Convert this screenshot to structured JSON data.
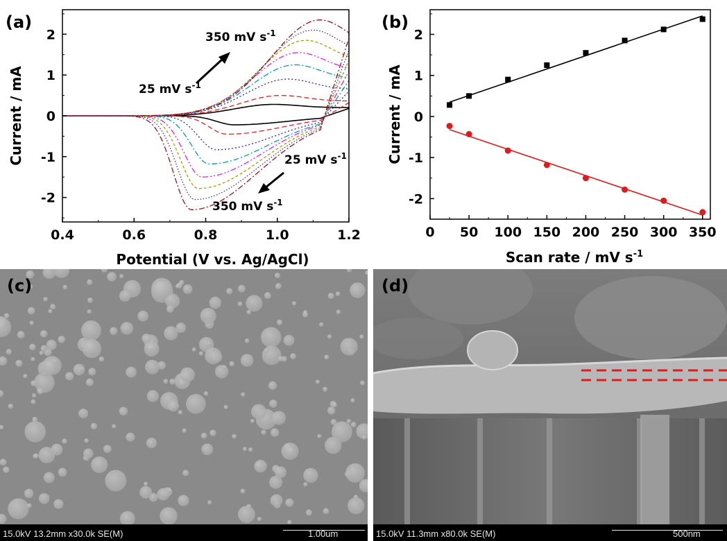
{
  "panels": {
    "a": {
      "label": "(a)",
      "annotations": {
        "top": [
          "350 mV s",
          "-1"
        ],
        "mid": [
          "25 mV s",
          "-1"
        ],
        "right": [
          "25 mV s",
          "-1"
        ],
        "bottom": [
          "350 mV s",
          "-1"
        ]
      }
    },
    "b": {
      "label": "(b)"
    },
    "c": {
      "label": "(c)",
      "sem_info": "15.0kV 13.2mm x30.0k SE(M)",
      "scale_label": "1.00um",
      "colors": {
        "background": "#8a8a8a",
        "particle": "#a8a8a8"
      }
    },
    "d": {
      "label": "(d)",
      "sem_info": "15.0kV 11.3mm x80.0k SE(M)",
      "scale_label": "500nm",
      "colors": {
        "background": "#6e6e6e",
        "layer": "#b8b8b8",
        "dash": "#e01b1b"
      }
    }
  },
  "chart_data": [
    {
      "type": "line",
      "xlabel": "Potential (V vs. Ag/AgCl)",
      "ylabel": "Current / mA",
      "xlim": [
        0.4,
        1.2
      ],
      "ylim": [
        -2.6,
        2.6
      ],
      "xticks": [
        "0.4",
        "0.6",
        "0.8",
        "1.0",
        "1.2"
      ],
      "yticks": [
        "-2",
        "-1",
        "0",
        "1",
        "2"
      ],
      "series": [
        {
          "scan_rate": 25,
          "anodic_peak": [
            0.99,
            0.28
          ],
          "cathodic_peak": [
            0.88,
            -0.22
          ],
          "color": "#000000",
          "dash": "solid"
        },
        {
          "scan_rate": 50,
          "anodic_peak": [
            1.01,
            0.5
          ],
          "cathodic_peak": [
            0.86,
            -0.45
          ],
          "color": "#e02020",
          "dash": "dashed"
        },
        {
          "scan_rate": 100,
          "anodic_peak": [
            1.03,
            0.9
          ],
          "cathodic_peak": [
            0.83,
            -0.83
          ],
          "color": "#2020d0",
          "dash": "dotted"
        },
        {
          "scan_rate": 150,
          "anodic_peak": [
            1.05,
            1.25
          ],
          "cathodic_peak": [
            0.81,
            -1.18
          ],
          "color": "#00a0a0",
          "dash": "dashdot"
        },
        {
          "scan_rate": 200,
          "anodic_peak": [
            1.06,
            1.55
          ],
          "cathodic_peak": [
            0.79,
            -1.5
          ],
          "color": "#e020e0",
          "dash": "dashdotdot"
        },
        {
          "scan_rate": 250,
          "anodic_peak": [
            1.08,
            1.85
          ],
          "cathodic_peak": [
            0.78,
            -1.78
          ],
          "color": "#a0a000",
          "dash": "shortdash"
        },
        {
          "scan_rate": 300,
          "anodic_peak": [
            1.1,
            2.1
          ],
          "cathodic_peak": [
            0.77,
            -2.05
          ],
          "color": "#3030a0",
          "dash": "shortdot"
        },
        {
          "scan_rate": 350,
          "anodic_peak": [
            1.12,
            2.35
          ],
          "cathodic_peak": [
            0.76,
            -2.3
          ],
          "color": "#a01010",
          "dash": "dashdot"
        }
      ]
    },
    {
      "type": "scatter",
      "xlabel": "Scan rate / mV s",
      "xlabel_sup": "-1",
      "ylabel": "Current / mA",
      "xlim": [
        0,
        360
      ],
      "ylim": [
        -2.5,
        2.6
      ],
      "xticks": [
        "0",
        "50",
        "100",
        "150",
        "200",
        "250",
        "300",
        "350"
      ],
      "yticks": [
        "-2",
        "-1",
        "0",
        "1",
        "2"
      ],
      "series": [
        {
          "marker": "square",
          "color": "#000000",
          "x": [
            25,
            50,
            100,
            150,
            200,
            250,
            300,
            350
          ],
          "y": [
            0.28,
            0.5,
            0.9,
            1.25,
            1.55,
            1.85,
            2.12,
            2.37
          ],
          "fit": [
            [
              25,
              0.35
            ],
            [
              350,
              2.45
            ]
          ]
        },
        {
          "marker": "circle",
          "color": "#e01b1b",
          "x": [
            25,
            50,
            100,
            150,
            200,
            250,
            300,
            350
          ],
          "y": [
            -0.23,
            -0.43,
            -0.83,
            -1.18,
            -1.5,
            -1.78,
            -2.05,
            -2.33
          ],
          "fit": [
            [
              25,
              -0.32
            ],
            [
              350,
              -2.4
            ]
          ]
        }
      ]
    }
  ]
}
